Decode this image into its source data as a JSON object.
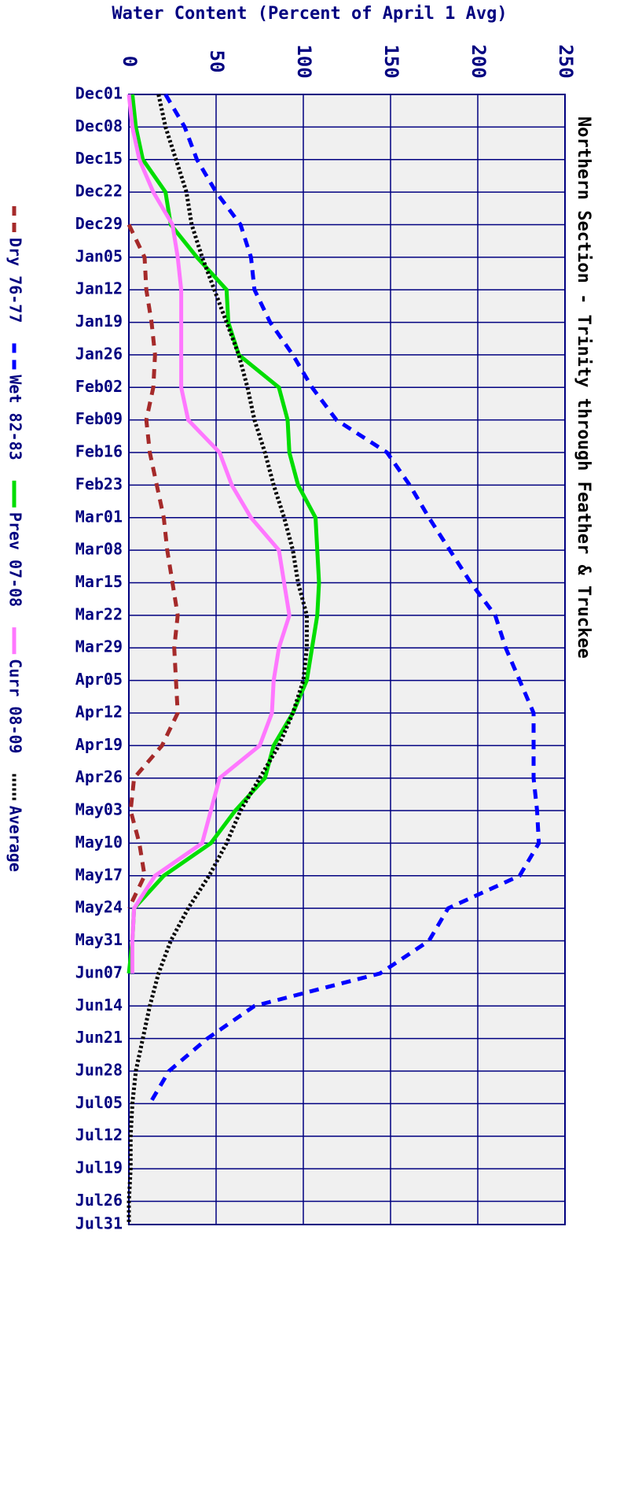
{
  "chart_data": {
    "type": "line",
    "title": "Northern Section - Trinity through Feather & Truckee",
    "y_label": "Water Content (Percent of April 1 Avg)",
    "categories": [
      "Dec01",
      "Dec08",
      "Dec15",
      "Dec22",
      "Dec29",
      "Jan05",
      "Jan12",
      "Jan19",
      "Jan26",
      "Feb02",
      "Feb09",
      "Feb16",
      "Feb23",
      "Mar01",
      "Mar08",
      "Mar15",
      "Mar22",
      "Mar29",
      "Apr05",
      "Apr12",
      "Apr19",
      "Apr26",
      "May03",
      "May10",
      "May17",
      "May24",
      "May31",
      "Jun07",
      "Jun14",
      "Jun21",
      "Jun28",
      "Jul05",
      "Jul12",
      "Jul19",
      "Jul26",
      "Jul31"
    ],
    "ylim": [
      0,
      250
    ],
    "yticks": [
      0,
      50,
      100,
      150,
      200,
      250
    ],
    "grid": true,
    "series": [
      {
        "name": "Dry 76-77",
        "color": "#a52a2a",
        "style": "dashed",
        "values": [
          null,
          null,
          null,
          null,
          0,
          9,
          10,
          13,
          15,
          14,
          10,
          12,
          16,
          20,
          22,
          25,
          28,
          26,
          27,
          28,
          19,
          3,
          1,
          6,
          9,
          0,
          null,
          null,
          null,
          null,
          null,
          null,
          null,
          null,
          null,
          null
        ]
      },
      {
        "name": "Wet 82-83",
        "color": "#0000ff",
        "style": "dashed",
        "values": [
          21,
          32,
          39,
          50,
          64,
          70,
          72,
          81,
          94,
          105,
          119,
          148,
          161,
          172,
          184,
          196,
          210,
          216,
          224,
          232,
          232,
          232,
          234,
          235,
          224,
          183,
          172,
          144,
          72,
          45,
          23,
          12,
          null,
          null,
          null,
          null
        ]
      },
      {
        "name": "Prev 07-08",
        "color": "#00dd00",
        "style": "solid",
        "values": [
          2,
          4,
          8,
          21,
          24,
          39,
          56,
          57,
          63,
          86,
          91,
          92,
          97,
          107,
          108,
          109,
          108,
          105,
          102,
          94,
          83,
          78,
          61,
          47,
          20,
          3,
          2,
          0,
          null,
          null,
          null,
          null,
          null,
          null,
          null,
          null
        ]
      },
      {
        "name": "Curr 08-09",
        "color": "#ff77ff",
        "style": "solid",
        "values": [
          0,
          2,
          6,
          14,
          25,
          28,
          30,
          30,
          30,
          30,
          34,
          52,
          59,
          70,
          86,
          89,
          92,
          86,
          83,
          82,
          75,
          52,
          47,
          42,
          15,
          3,
          2,
          2,
          null,
          null,
          null,
          null,
          null,
          null,
          null,
          null
        ]
      },
      {
        "name": "Average",
        "color": "#000000",
        "style": "dotted",
        "values": [
          17,
          21,
          27,
          33,
          36,
          42,
          49,
          56,
          63,
          68,
          72,
          78,
          83,
          89,
          94,
          97,
          102,
          102,
          100,
          94,
          86,
          75,
          64,
          56,
          46,
          34,
          24,
          17,
          12,
          8,
          4,
          2,
          1,
          1,
          0,
          0
        ]
      }
    ]
  }
}
